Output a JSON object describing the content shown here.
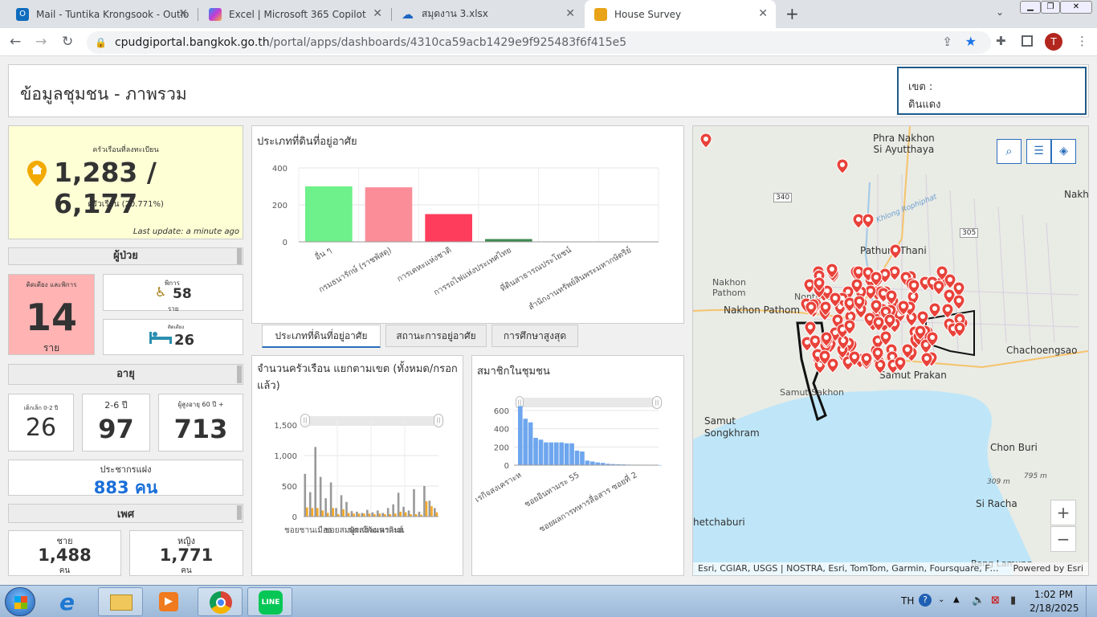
{
  "browser": {
    "tabs": [
      {
        "label": "Mail - Tuntika Krongsook - Outlo",
        "color": "#0f6cbd",
        "glyph": "O"
      },
      {
        "label": "Excel | Microsoft 365 Copilot",
        "color": "#c43bd6",
        "glyph": "✦"
      },
      {
        "label": "สมุดงาน 3.xlsx",
        "color": "#1e66c1",
        "glyph": "☁"
      },
      {
        "label": "House Survey",
        "color": "#e8a317",
        "glyph": "▦"
      }
    ],
    "url_domain": "cpudgiportal.bangkok.go.th",
    "url_path": "/portal/apps/dashboards/4310ca59acb1429e9f925483f6f415e5",
    "profile_initial": "T"
  },
  "dashboard": {
    "title": "ข้อมูลชุมชน - ภาพรวม",
    "district_label": "เขต :",
    "district_value": "ดินแดง",
    "households": {
      "caption": "ครัวเรือนที่ลงทะเบียน",
      "value": "1,283 / 6,177",
      "sub": "ครัวเรือน (20.771%)",
      "updated": "Last update: a minute ago"
    },
    "patients": {
      "header": "ผู้ป่วย",
      "bedridden_label": "ติดเตียง และพิการ",
      "bedridden_value": "14",
      "bedridden_unit": "ราย",
      "disabled_label": "พิการ",
      "disabled_value": "58",
      "disabled_unit": "ราย",
      "bed_label": "ติดเตียง",
      "bed_value": "26"
    },
    "age": {
      "header": "อายุ",
      "kids_label": "เด็กเล็ก 0-2 ปี",
      "kids_value": "26",
      "young_label": "2-6 ปี",
      "young_value": "97",
      "elder_label": "ผู้สูงอายุ 60 ปี +",
      "elder_value": "713"
    },
    "hidden_pop": {
      "label": "ประชากรแฝง",
      "value": "883 คน"
    },
    "gender": {
      "header": "เพศ",
      "male_label": "ชาย",
      "male_value": "1,488",
      "male_unit": "คน",
      "female_label": "หญิง",
      "female_value": "1,771",
      "female_unit": "คน"
    },
    "tabs": [
      "ประเภทที่ดินที่อยู่อาศัย",
      "สถานะการอยู่อาศัย",
      "การศึกษาสูงสุด"
    ],
    "map": {
      "labels": [
        "Phra Nakhon\nSi Ayutthaya",
        "Nakho",
        "Pathum Thani",
        "Nakhon\nPathom",
        "Nonthaburi",
        "Nakhon Pathom",
        "Chachoengsao",
        "Samut Sakhon",
        "Samut Prakan",
        "Samut\nSongkhram",
        "Chon Buri",
        "Si Racha",
        "hetchaburi",
        "Bang Lamung",
        "340",
        "305",
        "Khlong Rophiphat",
        "309 m",
        "795 m"
      ],
      "attribution": "Esri, CGIAR, USGS | NOSTRA, Esri, TomTom, Garmin, Foursquare, F…",
      "powered": "Powered by Esri",
      "zoom_in": "+",
      "zoom_out": "−"
    },
    "taskbar": {
      "lang": "TH",
      "time": "1:02 PM",
      "date": "2/18/2025"
    }
  },
  "chart_data": [
    {
      "type": "bar",
      "title": "ประเภทที่ดินที่อยู่อาศัย",
      "categories": [
        "อื่น ๆ",
        "กรมธนารักษ์ (ราชพัสดุ)",
        "การเคหะแห่งชาติ",
        "การรถไฟแห่งประเทศไทย",
        "ที่ดินสาธารณประโยชน์",
        "สำนักงานทรัพย์สินพระมหากษัตริย์"
      ],
      "values": [
        300,
        295,
        150,
        15,
        2,
        2
      ],
      "colors": [
        "#6ef08a",
        "#fb8d98",
        "#fe3d5c",
        "#3e8a50",
        "#b5a060",
        "#a09060"
      ],
      "ylim": [
        0,
        400
      ],
      "yticks": [
        0,
        200,
        400
      ]
    },
    {
      "type": "bar",
      "title": "จำนวนครัวเรือน แยกตามเขต (ทั้งหมด/กรอกแล้ว)",
      "series": [
        {
          "values": [
            700,
            400,
            1140,
            650,
            300,
            560,
            140,
            350,
            240,
            90,
            80,
            60,
            110,
            70,
            100,
            60,
            140,
            200,
            390,
            160,
            100,
            450,
            80,
            500,
            260,
            140
          ]
        },
        {
          "values": [
            150,
            140,
            140,
            100,
            60,
            140,
            40,
            120,
            60,
            50,
            50,
            50,
            50,
            40,
            50,
            40,
            40,
            50,
            80,
            70,
            40,
            40,
            30,
            250,
            170,
            70
          ]
        }
      ],
      "series_colors": [
        "#999999",
        "#f4a825"
      ],
      "ylim": [
        0,
        1500
      ],
      "yticks": [
        0,
        500,
        1000,
        1500
      ],
      "tick_labels": [
        "ชอยชานเมือง",
        "ชอยสมบูรณ์พัฒนา",
        "พัดสร้างเคราะห์",
        "ดินแ"
      ]
    },
    {
      "type": "bar",
      "title": "สมาชิกในชุมชน",
      "values": [
        650,
        510,
        470,
        300,
        280,
        250,
        250,
        250,
        250,
        240,
        240,
        160,
        150,
        50,
        40,
        30,
        25,
        15,
        12,
        10,
        8,
        6,
        5,
        5,
        4,
        3,
        2,
        1
      ],
      "ylim": [
        0,
        600
      ],
      "yticks": [
        0,
        200,
        400,
        600
      ],
      "tick_labels": [
        "เรกิจสงเคราะห",
        "ชอยอินทามระ 55",
        "ชอยผลการทหารสื่อสาร ซอยที่ 2"
      ]
    }
  ]
}
